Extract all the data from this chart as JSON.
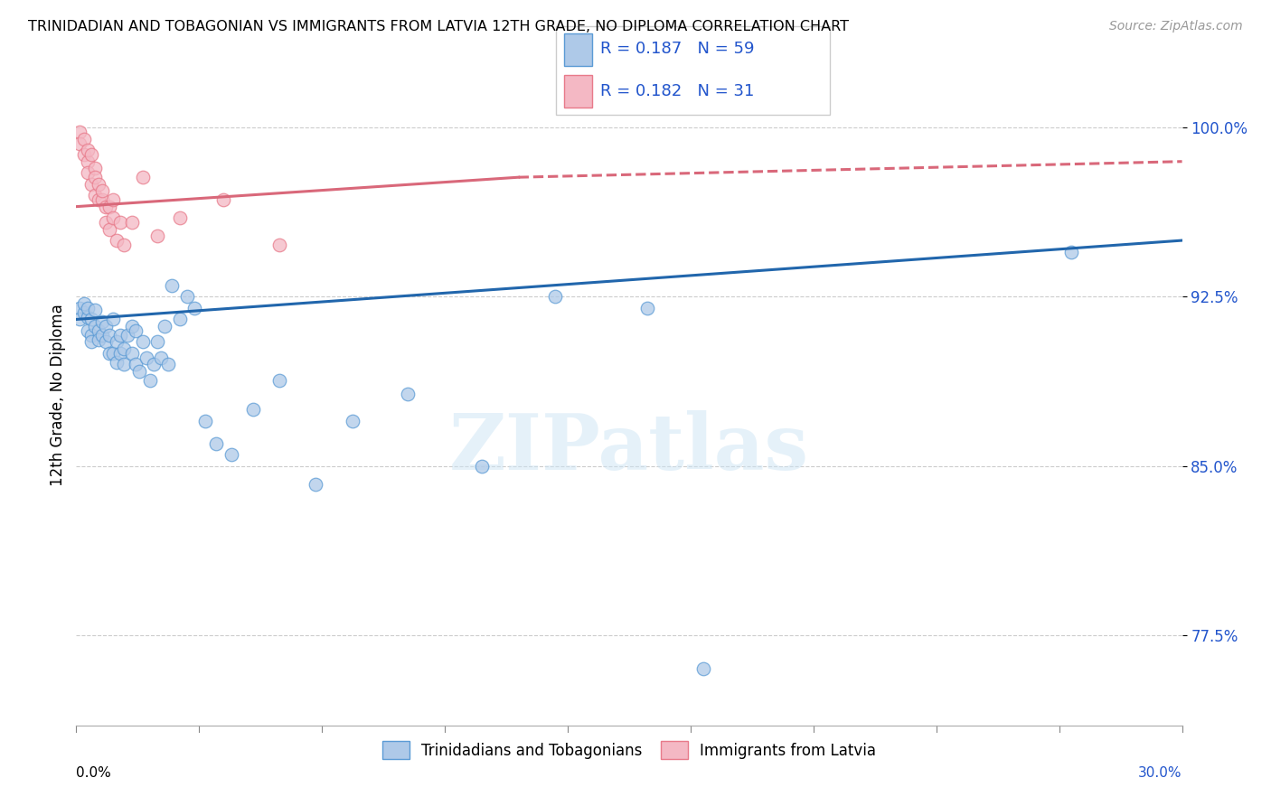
{
  "title": "TRINIDADIAN AND TOBAGONIAN VS IMMIGRANTS FROM LATVIA 12TH GRADE, NO DIPLOMA CORRELATION CHART",
  "source": "Source: ZipAtlas.com",
  "ylabel": "12th Grade, No Diploma",
  "ytick_vals": [
    0.775,
    0.85,
    0.925,
    1.0
  ],
  "ytick_labels": [
    "77.5%",
    "85.0%",
    "92.5%",
    "100.0%"
  ],
  "xmin": 0.0,
  "xmax": 0.3,
  "ymin": 0.735,
  "ymax": 1.028,
  "blue_R": 0.187,
  "blue_N": 59,
  "pink_R": 0.182,
  "pink_N": 31,
  "blue_color": "#aec9e8",
  "pink_color": "#f4b8c4",
  "blue_edge_color": "#5b9bd5",
  "pink_edge_color": "#e87a8a",
  "blue_line_color": "#2166ac",
  "pink_line_color": "#d9687a",
  "axis_label_color": "#2255cc",
  "legend_label_blue": "Trinidadians and Tobagonians",
  "legend_label_pink": "Immigrants from Latvia",
  "watermark": "ZIPatlas",
  "blue_x": [
    0.001,
    0.001,
    0.002,
    0.002,
    0.003,
    0.003,
    0.003,
    0.004,
    0.004,
    0.004,
    0.005,
    0.005,
    0.006,
    0.006,
    0.007,
    0.007,
    0.008,
    0.008,
    0.009,
    0.009,
    0.01,
    0.01,
    0.011,
    0.011,
    0.012,
    0.012,
    0.013,
    0.013,
    0.014,
    0.015,
    0.015,
    0.016,
    0.016,
    0.017,
    0.018,
    0.019,
    0.02,
    0.021,
    0.022,
    0.023,
    0.024,
    0.025,
    0.026,
    0.028,
    0.03,
    0.032,
    0.035,
    0.038,
    0.042,
    0.048,
    0.055,
    0.065,
    0.075,
    0.09,
    0.11,
    0.13,
    0.155,
    0.17,
    0.27
  ],
  "blue_y": [
    0.92,
    0.915,
    0.918,
    0.922,
    0.916,
    0.92,
    0.91,
    0.915,
    0.908,
    0.905,
    0.912,
    0.919,
    0.91,
    0.906,
    0.908,
    0.914,
    0.905,
    0.912,
    0.9,
    0.908,
    0.9,
    0.915,
    0.896,
    0.905,
    0.9,
    0.908,
    0.895,
    0.902,
    0.908,
    0.912,
    0.9,
    0.895,
    0.91,
    0.892,
    0.905,
    0.898,
    0.888,
    0.895,
    0.905,
    0.898,
    0.912,
    0.895,
    0.93,
    0.915,
    0.925,
    0.92,
    0.87,
    0.86,
    0.855,
    0.875,
    0.888,
    0.842,
    0.87,
    0.882,
    0.85,
    0.925,
    0.92,
    0.76,
    0.945
  ],
  "pink_x": [
    0.001,
    0.001,
    0.002,
    0.002,
    0.003,
    0.003,
    0.003,
    0.004,
    0.004,
    0.005,
    0.005,
    0.005,
    0.006,
    0.006,
    0.007,
    0.007,
    0.008,
    0.008,
    0.009,
    0.009,
    0.01,
    0.01,
    0.011,
    0.012,
    0.013,
    0.015,
    0.018,
    0.022,
    0.028,
    0.04,
    0.055
  ],
  "pink_y": [
    0.998,
    0.993,
    0.988,
    0.995,
    0.985,
    0.99,
    0.98,
    0.975,
    0.988,
    0.982,
    0.978,
    0.97,
    0.975,
    0.968,
    0.968,
    0.972,
    0.965,
    0.958,
    0.955,
    0.965,
    0.96,
    0.968,
    0.95,
    0.958,
    0.948,
    0.958,
    0.978,
    0.952,
    0.96,
    0.968,
    0.948
  ]
}
